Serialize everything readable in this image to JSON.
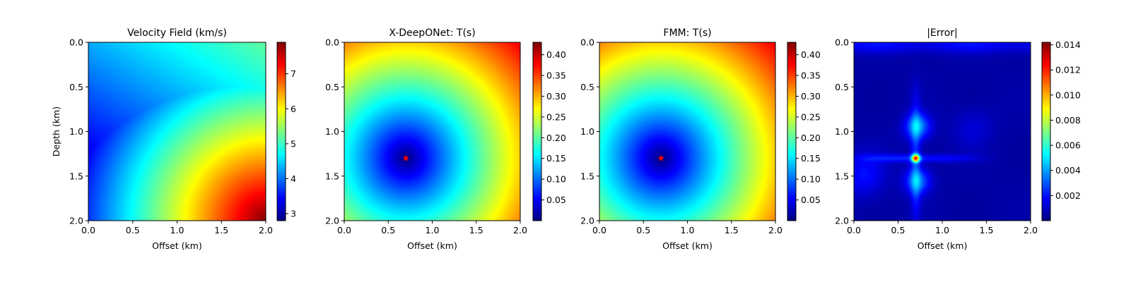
{
  "colors": {
    "colormap": "jet",
    "jet_stops": [
      "#00007f",
      "#0000ff",
      "#007fff",
      "#00ffff",
      "#7fff7f",
      "#ffff00",
      "#ff7f00",
      "#ff0000",
      "#7f0000"
    ],
    "source_marker": "#ff0000"
  },
  "chart_data": [
    {
      "type": "heatmap",
      "title": "Velocity Field (km/s)",
      "xlabel": "Offset (km)",
      "ylabel": "Depth (km)",
      "xlim": [
        0.0,
        2.0
      ],
      "ylim": [
        2.0,
        0.0
      ],
      "xticks": [
        "0.0",
        "0.5",
        "1.0",
        "1.5",
        "2.0"
      ],
      "yticks": [
        "0.0",
        "0.5",
        "1.0",
        "1.5",
        "2.0"
      ],
      "colorbar": {
        "min": 2.8,
        "max": 7.9,
        "ticks": [
          "3",
          "4",
          "5",
          "6",
          "7"
        ],
        "tick_values": [
          3,
          4,
          5,
          6,
          7
        ]
      },
      "field": "velocity",
      "grid": false
    },
    {
      "type": "heatmap",
      "title": "X-DeepONet: T(s)",
      "xlabel": "Offset (km)",
      "ylabel": "",
      "xlim": [
        0.0,
        2.0
      ],
      "ylim": [
        2.0,
        0.0
      ],
      "xticks": [
        "0.0",
        "0.5",
        "1.0",
        "1.5",
        "2.0"
      ],
      "yticks": [
        "0.0",
        "0.5",
        "1.0",
        "1.5",
        "2.0"
      ],
      "colorbar": {
        "min": 0.0,
        "max": 0.43,
        "ticks": [
          "0.05",
          "0.10",
          "0.15",
          "0.20",
          "0.25",
          "0.30",
          "0.35",
          "0.40"
        ],
        "tick_values": [
          0.05,
          0.1,
          0.15,
          0.2,
          0.25,
          0.3,
          0.35,
          0.4
        ]
      },
      "field": "traveltime",
      "source": {
        "x": 0.7,
        "y": 1.3,
        "marker": "star"
      },
      "grid": false
    },
    {
      "type": "heatmap",
      "title": "FMM: T(s)",
      "xlabel": "Offset (km)",
      "ylabel": "",
      "xlim": [
        0.0,
        2.0
      ],
      "ylim": [
        2.0,
        0.0
      ],
      "xticks": [
        "0.0",
        "0.5",
        "1.0",
        "1.5",
        "2.0"
      ],
      "yticks": [
        "0.0",
        "0.5",
        "1.0",
        "1.5",
        "2.0"
      ],
      "colorbar": {
        "min": 0.0,
        "max": 0.43,
        "ticks": [
          "0.05",
          "0.10",
          "0.15",
          "0.20",
          "0.25",
          "0.30",
          "0.35",
          "0.40"
        ],
        "tick_values": [
          0.05,
          0.1,
          0.15,
          0.2,
          0.25,
          0.3,
          0.35,
          0.4
        ]
      },
      "field": "traveltime",
      "source": {
        "x": 0.7,
        "y": 1.3,
        "marker": "star"
      },
      "grid": false
    },
    {
      "type": "heatmap",
      "title": "|Error|",
      "xlabel": "Offset (km)",
      "ylabel": "",
      "xlim": [
        0.0,
        2.0
      ],
      "ylim": [
        2.0,
        0.0
      ],
      "xticks": [
        "0.0",
        "0.5",
        "1.0",
        "1.5",
        "2.0"
      ],
      "yticks": [
        "0.0",
        "0.5",
        "1.0",
        "1.5",
        "2.0"
      ],
      "colorbar": {
        "min": 0.0,
        "max": 0.0142,
        "ticks": [
          "0.002",
          "0.004",
          "0.006",
          "0.008",
          "0.010",
          "0.012",
          "0.014"
        ],
        "tick_values": [
          0.002,
          0.004,
          0.006,
          0.008,
          0.01,
          0.012,
          0.014
        ]
      },
      "field": "error",
      "source": {
        "x": 0.7,
        "y": 1.3
      },
      "grid": false
    }
  ]
}
